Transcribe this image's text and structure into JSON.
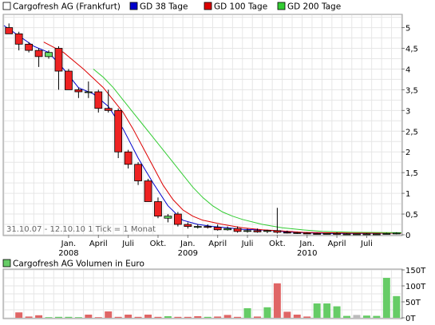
{
  "chart_data": [
    {
      "type": "candlestick",
      "title": "",
      "legend_placement": "top",
      "legend": [
        {
          "name": "Cargofresh AG (Frankfurt)",
          "color": "#ffffff"
        },
        {
          "name": "GD 38 Tage",
          "color": "#0000cc"
        },
        {
          "name": "GD 100 Tage",
          "color": "#dd0000"
        },
        {
          "name": "GD 200 Tage",
          "color": "#33cc33"
        }
      ],
      "info_text": "31.10.07 - 12.10.10   1 Tick = 1 Monat",
      "x_tick_labels": [
        {
          "l1": "Jan.",
          "l2": "2008",
          "t": 6.5
        },
        {
          "l1": "April",
          "l2": "",
          "t": 9.5
        },
        {
          "l1": "Juli",
          "l2": "",
          "t": 12.5
        },
        {
          "l1": "Okt.",
          "l2": "",
          "t": 15.5
        },
        {
          "l1": "Jan.",
          "l2": "2009",
          "t": 18.5
        },
        {
          "l1": "April",
          "l2": "",
          "t": 21.5
        },
        {
          "l1": "Juli",
          "l2": "",
          "t": 24.5
        },
        {
          "l1": "Okt.",
          "l2": "",
          "t": 27.5
        },
        {
          "l1": "Jan.",
          "l2": "2010",
          "t": 30.5
        },
        {
          "l1": "April",
          "l2": "",
          "t": 33.5
        },
        {
          "l1": "Juli",
          "l2": "",
          "t": 36.5
        }
      ],
      "y_ticks": [
        {
          "v": 0,
          "label": "0"
        },
        {
          "v": 0.5,
          "label": "0,5"
        },
        {
          "v": 1,
          "label": "1"
        },
        {
          "v": 1.5,
          "label": "1,5"
        },
        {
          "v": 2,
          "label": "2"
        },
        {
          "v": 2.5,
          "label": "2,5"
        },
        {
          "v": 3,
          "label": "3"
        },
        {
          "v": 3.5,
          "label": "3,5"
        },
        {
          "v": 4,
          "label": "4"
        },
        {
          "v": 4.5,
          "label": "4,5"
        },
        {
          "v": 5,
          "label": "5"
        }
      ],
      "ylim": [
        0,
        5.3
      ],
      "xlim": [
        0,
        40
      ],
      "grid": true,
      "candles": [
        {
          "t": 0.5,
          "o": 5.0,
          "h": 5.1,
          "l": 4.85,
          "c": 4.85
        },
        {
          "t": 1.5,
          "o": 4.85,
          "h": 4.9,
          "l": 4.45,
          "c": 4.6
        },
        {
          "t": 2.5,
          "o": 4.6,
          "h": 4.65,
          "l": 4.4,
          "c": 4.45
        },
        {
          "t": 3.5,
          "o": 4.45,
          "h": 4.5,
          "l": 4.05,
          "c": 4.3
        },
        {
          "t": 4.5,
          "o": 4.3,
          "h": 4.45,
          "l": 4.25,
          "c": 4.4
        },
        {
          "t": 5.5,
          "o": 4.5,
          "h": 4.55,
          "l": 3.5,
          "c": 3.95
        },
        {
          "t": 6.5,
          "o": 3.95,
          "h": 4.0,
          "l": 3.5,
          "c": 3.5
        },
        {
          "t": 7.5,
          "o": 3.5,
          "h": 3.55,
          "l": 3.3,
          "c": 3.45
        },
        {
          "t": 8.5,
          "o": 3.45,
          "h": 3.7,
          "l": 3.3,
          "c": 3.45
        },
        {
          "t": 9.5,
          "o": 3.45,
          "h": 3.5,
          "l": 2.95,
          "c": 3.05
        },
        {
          "t": 10.5,
          "o": 3.05,
          "h": 3.5,
          "l": 2.95,
          "c": 3.0
        },
        {
          "t": 11.5,
          "o": 3.0,
          "h": 3.05,
          "l": 1.85,
          "c": 2.0
        },
        {
          "t": 12.5,
          "o": 2.0,
          "h": 2.05,
          "l": 1.6,
          "c": 1.7
        },
        {
          "t": 13.5,
          "o": 1.7,
          "h": 1.75,
          "l": 1.2,
          "c": 1.3
        },
        {
          "t": 14.5,
          "o": 1.3,
          "h": 1.35,
          "l": 0.8,
          "c": 0.8
        },
        {
          "t": 15.5,
          "o": 0.8,
          "h": 0.9,
          "l": 0.4,
          "c": 0.45
        },
        {
          "t": 16.5,
          "o": 0.4,
          "h": 0.5,
          "l": 0.3,
          "c": 0.45
        },
        {
          "t": 17.5,
          "o": 0.5,
          "h": 0.55,
          "l": 0.2,
          "c": 0.25
        },
        {
          "t": 18.5,
          "o": 0.25,
          "h": 0.3,
          "l": 0.15,
          "c": 0.2
        },
        {
          "t": 19.5,
          "o": 0.2,
          "h": 0.25,
          "l": 0.15,
          "c": 0.2
        },
        {
          "t": 20.5,
          "o": 0.2,
          "h": 0.25,
          "l": 0.15,
          "c": 0.18
        },
        {
          "t": 21.5,
          "o": 0.18,
          "h": 0.25,
          "l": 0.1,
          "c": 0.12
        },
        {
          "t": 22.5,
          "o": 0.12,
          "h": 0.2,
          "l": 0.1,
          "c": 0.15
        },
        {
          "t": 23.5,
          "o": 0.15,
          "h": 0.2,
          "l": 0.05,
          "c": 0.08
        },
        {
          "t": 24.5,
          "o": 0.08,
          "h": 0.15,
          "l": 0.05,
          "c": 0.1
        },
        {
          "t": 25.5,
          "o": 0.1,
          "h": 0.15,
          "l": 0.05,
          "c": 0.07
        },
        {
          "t": 26.5,
          "o": 0.08,
          "h": 0.12,
          "l": 0.04,
          "c": 0.1
        },
        {
          "t": 27.5,
          "o": 0.1,
          "h": 0.65,
          "l": 0.03,
          "c": 0.06
        },
        {
          "t": 28.5,
          "o": 0.06,
          "h": 0.1,
          "l": 0.03,
          "c": 0.05
        },
        {
          "t": 29.5,
          "o": 0.05,
          "h": 0.07,
          "l": 0.02,
          "c": 0.04
        },
        {
          "t": 30.5,
          "o": 0.04,
          "h": 0.06,
          "l": 0.02,
          "c": 0.03
        },
        {
          "t": 31.5,
          "o": 0.03,
          "h": 0.05,
          "l": 0.01,
          "c": 0.02
        },
        {
          "t": 32.5,
          "o": 0.02,
          "h": 0.04,
          "l": 0.01,
          "c": 0.03
        },
        {
          "t": 33.5,
          "o": 0.03,
          "h": 0.06,
          "l": 0.01,
          "c": 0.02
        },
        {
          "t": 34.5,
          "o": 0.02,
          "h": 0.04,
          "l": 0.01,
          "c": 0.02
        },
        {
          "t": 35.5,
          "o": 0.02,
          "h": 0.03,
          "l": 0.01,
          "c": 0.02
        },
        {
          "t": 36.5,
          "o": 0.02,
          "h": 0.04,
          "l": 0.01,
          "c": 0.02
        },
        {
          "t": 37.5,
          "o": 0.02,
          "h": 0.03,
          "l": 0.01,
          "c": 0.02
        },
        {
          "t": 38.5,
          "o": 0.02,
          "h": 0.05,
          "l": 0.01,
          "c": 0.03
        },
        {
          "t": 39.5,
          "o": 0.03,
          "h": 0.06,
          "l": 0.01,
          "c": 0.04
        }
      ],
      "series": [
        {
          "name": "GD 38 Tage",
          "color": "#0000cc",
          "x": [
            0,
            1.5,
            3,
            4.5,
            6,
            7.5,
            9,
            10.5,
            12,
            13.5,
            15,
            16.5,
            18,
            19.5,
            21,
            22.5,
            24,
            25.5,
            27,
            28.5,
            30,
            33,
            36,
            40
          ],
          "y": [
            5.05,
            4.8,
            4.55,
            4.4,
            4.0,
            3.55,
            3.4,
            3.1,
            2.55,
            1.85,
            1.25,
            0.7,
            0.35,
            0.25,
            0.2,
            0.17,
            0.13,
            0.12,
            0.1,
            0.07,
            0.05,
            0.03,
            0.03,
            0.04
          ]
        },
        {
          "name": "GD 100 Tage",
          "color": "#dd0000",
          "x": [
            4,
            6,
            8,
            10,
            12,
            13,
            14,
            15,
            16,
            17,
            18,
            19,
            20,
            22,
            24,
            26,
            28,
            30,
            32,
            35,
            40
          ],
          "y": [
            4.65,
            4.4,
            4.0,
            3.55,
            2.95,
            2.55,
            2.1,
            1.65,
            1.2,
            0.85,
            0.6,
            0.45,
            0.35,
            0.25,
            0.17,
            0.12,
            0.09,
            0.06,
            0.05,
            0.04,
            0.04
          ]
        },
        {
          "name": "GD 200 Tage",
          "color": "#33cc33",
          "x": [
            9,
            10,
            11,
            12,
            13,
            14,
            15,
            16,
            17,
            18,
            19,
            20,
            21,
            22,
            23,
            24,
            26,
            28,
            30,
            32,
            35,
            40
          ],
          "y": [
            4.0,
            3.8,
            3.55,
            3.25,
            2.95,
            2.65,
            2.35,
            2.05,
            1.75,
            1.45,
            1.15,
            0.9,
            0.7,
            0.55,
            0.45,
            0.37,
            0.25,
            0.17,
            0.12,
            0.08,
            0.06,
            0.05
          ]
        }
      ]
    },
    {
      "type": "bar",
      "title": "",
      "legend": [
        {
          "name": "Cargofresh AG Volumen in Euro",
          "color": "#66cc66"
        }
      ],
      "y_ticks": [
        {
          "v": 0,
          "label": "0T"
        },
        {
          "v": 50000,
          "label": "50T"
        },
        {
          "v": 100000,
          "label": "100T"
        },
        {
          "v": 150000,
          "label": "150T"
        }
      ],
      "ylim": [
        0,
        150000
      ],
      "xlim": [
        0,
        40
      ],
      "colors": {
        "up": "#66cc66",
        "down": "#e06666",
        "neutral": "#bbbbbb"
      },
      "bars": [
        {
          "t": 0.5,
          "v": 0,
          "dir": "down"
        },
        {
          "t": 1.5,
          "v": 17000,
          "dir": "down"
        },
        {
          "t": 2.5,
          "v": 4000,
          "dir": "down"
        },
        {
          "t": 3.5,
          "v": 8000,
          "dir": "down"
        },
        {
          "t": 4.5,
          "v": 2000,
          "dir": "up"
        },
        {
          "t": 5.5,
          "v": 3000,
          "dir": "up"
        },
        {
          "t": 6.5,
          "v": 3000,
          "dir": "up"
        },
        {
          "t": 7.5,
          "v": 2000,
          "dir": "up"
        },
        {
          "t": 8.5,
          "v": 10000,
          "dir": "down"
        },
        {
          "t": 9.5,
          "v": 2000,
          "dir": "down"
        },
        {
          "t": 10.5,
          "v": 20000,
          "dir": "down"
        },
        {
          "t": 11.5,
          "v": 3000,
          "dir": "down"
        },
        {
          "t": 12.5,
          "v": 10000,
          "dir": "down"
        },
        {
          "t": 13.5,
          "v": 3000,
          "dir": "down"
        },
        {
          "t": 14.5,
          "v": 10000,
          "dir": "down"
        },
        {
          "t": 15.5,
          "v": 3000,
          "dir": "down"
        },
        {
          "t": 16.5,
          "v": 5000,
          "dir": "up"
        },
        {
          "t": 17.5,
          "v": 3000,
          "dir": "down"
        },
        {
          "t": 18.5,
          "v": 3000,
          "dir": "down"
        },
        {
          "t": 19.5,
          "v": 5000,
          "dir": "down"
        },
        {
          "t": 20.5,
          "v": 3000,
          "dir": "up"
        },
        {
          "t": 21.5,
          "v": 4000,
          "dir": "down"
        },
        {
          "t": 22.5,
          "v": 9000,
          "dir": "down"
        },
        {
          "t": 23.5,
          "v": 3000,
          "dir": "down"
        },
        {
          "t": 24.5,
          "v": 30000,
          "dir": "up"
        },
        {
          "t": 25.5,
          "v": 4000,
          "dir": "down"
        },
        {
          "t": 26.5,
          "v": 33000,
          "dir": "up"
        },
        {
          "t": 27.5,
          "v": 108000,
          "dir": "down"
        },
        {
          "t": 28.5,
          "v": 19000,
          "dir": "down"
        },
        {
          "t": 29.5,
          "v": 10000,
          "dir": "down"
        },
        {
          "t": 30.5,
          "v": 4000,
          "dir": "down"
        },
        {
          "t": 31.5,
          "v": 45000,
          "dir": "up"
        },
        {
          "t": 32.5,
          "v": 45000,
          "dir": "up"
        },
        {
          "t": 33.5,
          "v": 36000,
          "dir": "up"
        },
        {
          "t": 34.5,
          "v": 6000,
          "dir": "up"
        },
        {
          "t": 35.5,
          "v": 9000,
          "dir": "neutral"
        },
        {
          "t": 36.5,
          "v": 7000,
          "dir": "up"
        },
        {
          "t": 37.5,
          "v": 6000,
          "dir": "up"
        },
        {
          "t": 38.5,
          "v": 125000,
          "dir": "up"
        },
        {
          "t": 39.5,
          "v": 68000,
          "dir": "up"
        }
      ]
    }
  ]
}
